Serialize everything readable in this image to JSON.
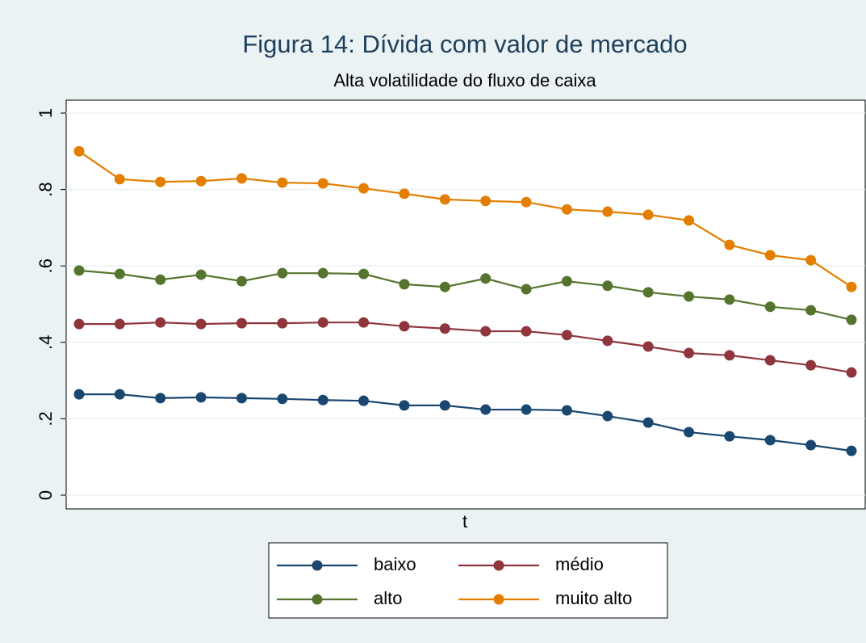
{
  "chart_data": {
    "type": "line",
    "title": "Figura 14: Dívida com valor de mercado",
    "subtitle": "Alta volatilidade do fluxo de caixa",
    "x_label": "t",
    "categories": [
      null,
      null,
      null,
      null,
      null,
      null,
      null,
      null,
      null,
      null,
      null,
      null,
      null,
      null,
      null,
      null,
      null,
      null,
      null,
      null
    ],
    "series": [
      {
        "name": "baixo",
        "color": "#1a476f",
        "values": [
          0.264,
          0.264,
          0.254,
          0.256,
          0.254,
          0.252,
          0.249,
          0.247,
          0.235,
          0.235,
          0.224,
          0.224,
          0.222,
          0.207,
          0.19,
          0.165,
          0.154,
          0.144,
          0.131,
          0.116
        ]
      },
      {
        "name": "médio",
        "color": "#90353b",
        "values": [
          0.448,
          0.448,
          0.452,
          0.448,
          0.45,
          0.45,
          0.452,
          0.452,
          0.442,
          0.436,
          0.429,
          0.429,
          0.419,
          0.404,
          0.389,
          0.372,
          0.366,
          0.353,
          0.34,
          0.321
        ]
      },
      {
        "name": "alto",
        "color": "#55752f",
        "values": [
          0.588,
          0.579,
          0.564,
          0.577,
          0.56,
          0.581,
          0.581,
          0.579,
          0.552,
          0.545,
          0.567,
          0.539,
          0.56,
          0.548,
          0.531,
          0.52,
          0.512,
          0.493,
          0.484,
          0.459
        ]
      },
      {
        "name": "muito alto",
        "color": "#e37e00",
        "values": [
          0.9,
          0.827,
          0.82,
          0.822,
          0.829,
          0.818,
          0.816,
          0.803,
          0.789,
          0.774,
          0.77,
          0.767,
          0.748,
          0.742,
          0.734,
          0.719,
          0.655,
          0.628,
          0.615,
          0.545
        ]
      }
    ],
    "ylim": [
      0,
      1
    ],
    "yticks": [
      0,
      {
        "value": 0.2,
        "label": ".2"
      },
      {
        "value": 0.4,
        "label": ".4"
      },
      {
        "value": 0.6,
        "label": ".6"
      },
      {
        "value": 0.8,
        "label": ".8"
      },
      1
    ],
    "grid": true,
    "legend": "bottom"
  }
}
